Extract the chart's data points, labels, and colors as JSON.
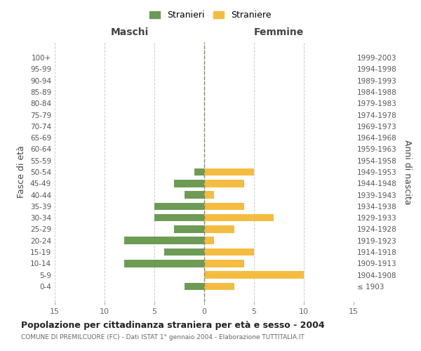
{
  "age_groups": [
    "100+",
    "95-99",
    "90-94",
    "85-89",
    "80-84",
    "75-79",
    "70-74",
    "65-69",
    "60-64",
    "55-59",
    "50-54",
    "45-49",
    "40-44",
    "35-39",
    "30-34",
    "25-29",
    "20-24",
    "15-19",
    "10-14",
    "5-9",
    "0-4"
  ],
  "birth_years": [
    "≤ 1903",
    "1904-1908",
    "1909-1913",
    "1914-1918",
    "1919-1923",
    "1924-1928",
    "1929-1933",
    "1934-1938",
    "1939-1943",
    "1944-1948",
    "1949-1953",
    "1954-1958",
    "1959-1963",
    "1964-1968",
    "1969-1973",
    "1974-1978",
    "1979-1983",
    "1984-1988",
    "1989-1993",
    "1994-1998",
    "1999-2003"
  ],
  "maschi": [
    0,
    0,
    0,
    0,
    0,
    0,
    0,
    0,
    0,
    0,
    1,
    3,
    2,
    5,
    5,
    3,
    8,
    4,
    8,
    0,
    2
  ],
  "femmine": [
    0,
    0,
    0,
    0,
    0,
    0,
    0,
    0,
    0,
    0,
    5,
    4,
    1,
    4,
    7,
    3,
    1,
    5,
    4,
    10,
    3
  ],
  "color_maschi": "#6d9b56",
  "color_femmine": "#f5bc42",
  "title": "Popolazione per cittadinanza straniera per età e sesso - 2004",
  "subtitle": "COMUNE DI PREMILCUORE (FC) - Dati ISTAT 1° gennaio 2004 - Elaborazione TUTTITALIA.IT",
  "xlabel_left": "Maschi",
  "xlabel_right": "Femmine",
  "ylabel_left": "Fasce di età",
  "ylabel_right": "Anni di nascita",
  "legend_maschi": "Stranieri",
  "legend_femmine": "Straniere",
  "xlim": 15,
  "background_color": "#ffffff",
  "grid_color": "#cccccc"
}
